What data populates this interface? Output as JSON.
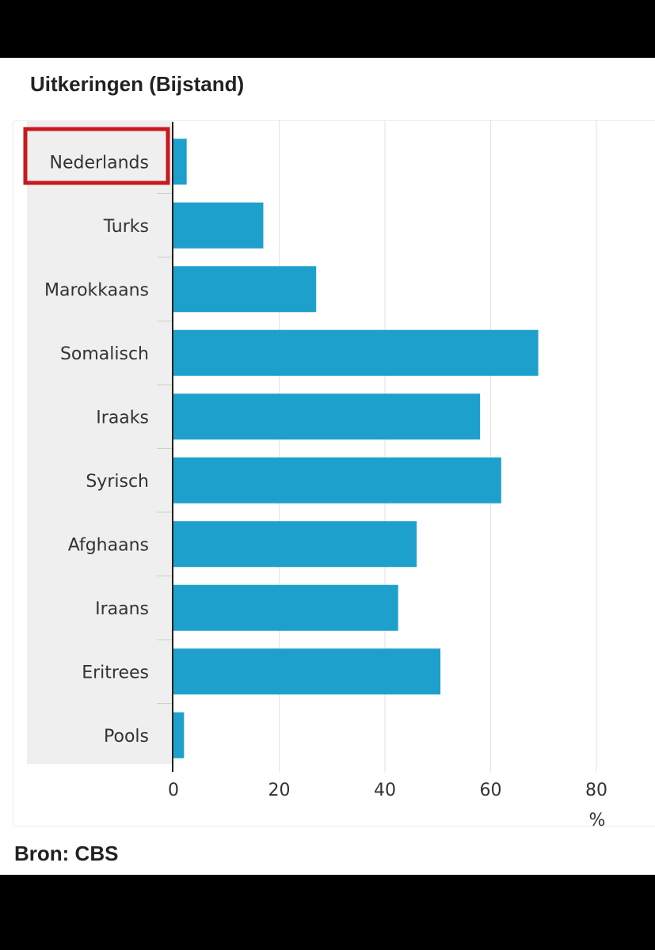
{
  "title": "Uitkeringen (Bijstand)",
  "source": "Bron: CBS",
  "colors": {
    "bar": "#1ea0cc",
    "highlight_box": "#c8191e",
    "label_column_bg": "#efefef",
    "grid": "#e2e2e2",
    "axis": "#222222"
  },
  "highlighted_category": "Nederlands",
  "chart_data": {
    "type": "bar",
    "orientation": "horizontal",
    "title": "Uitkeringen (Bijstand)",
    "categories": [
      "Nederlands",
      "Turks",
      "Marokkaans",
      "Somalisch",
      "Iraaks",
      "Syrisch",
      "Afghaans",
      "Iraans",
      "Eritrees",
      "Pools"
    ],
    "values": [
      2.5,
      17,
      27,
      69,
      58,
      62,
      46,
      42.5,
      50.5,
      2
    ],
    "xlabel": "%",
    "ylabel": "",
    "xlim": [
      0,
      80
    ],
    "xticks": [
      "0",
      "20",
      "40",
      "60",
      "80"
    ],
    "grid": true,
    "legend": "none"
  }
}
